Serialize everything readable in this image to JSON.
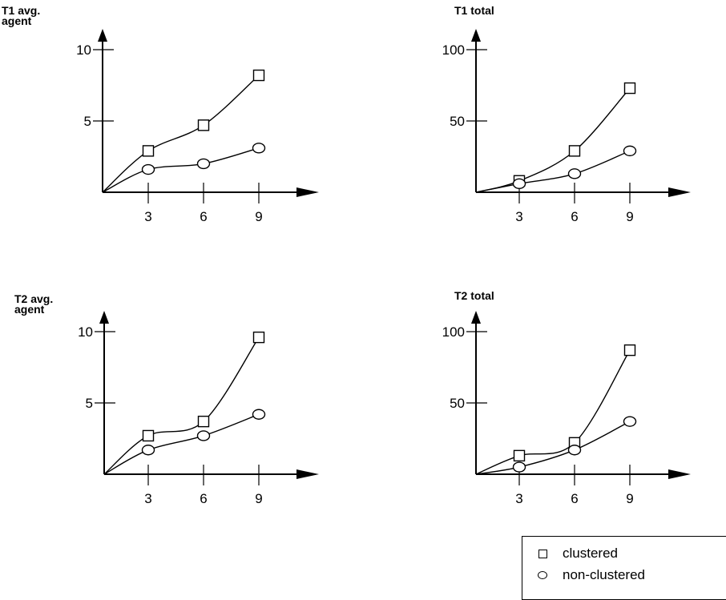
{
  "chart_data": [
    {
      "type": "line",
      "ylabel": "T1  avg.\nagent",
      "x": [
        3,
        6,
        9
      ],
      "xticks": [
        "3",
        "6",
        "9"
      ],
      "yticks": [
        5,
        10
      ],
      "ylim": [
        0,
        10
      ],
      "series": [
        {
          "name": "clustered",
          "marker": "square",
          "values": [
            2.9,
            4.7,
            8.2
          ]
        },
        {
          "name": "non-clustered",
          "marker": "circle",
          "values": [
            1.6,
            2.0,
            3.1
          ]
        }
      ]
    },
    {
      "type": "line",
      "ylabel": "T1 total",
      "x": [
        3,
        6,
        9
      ],
      "xticks": [
        "3",
        "6",
        "9"
      ],
      "yticks": [
        50,
        100
      ],
      "ylim": [
        0,
        100
      ],
      "series": [
        {
          "name": "clustered",
          "marker": "square",
          "values": [
            8,
            29,
            73
          ]
        },
        {
          "name": "non-clustered",
          "marker": "circle",
          "values": [
            6,
            13,
            29
          ]
        }
      ]
    },
    {
      "type": "line",
      "ylabel": "T2  avg.\nagent",
      "x": [
        3,
        6,
        9
      ],
      "xticks": [
        "3",
        "6",
        "9"
      ],
      "yticks": [
        5,
        10
      ],
      "ylim": [
        0,
        10
      ],
      "series": [
        {
          "name": "clustered",
          "marker": "square",
          "values": [
            2.7,
            3.7,
            9.6
          ]
        },
        {
          "name": "non-clustered",
          "marker": "circle",
          "values": [
            1.7,
            2.7,
            4.2
          ]
        }
      ]
    },
    {
      "type": "line",
      "ylabel": "T2 total",
      "x": [
        3,
        6,
        9
      ],
      "xticks": [
        "3",
        "6",
        "9"
      ],
      "yticks": [
        50,
        100
      ],
      "ylim": [
        0,
        100
      ],
      "series": [
        {
          "name": "clustered",
          "marker": "square",
          "values": [
            13,
            22,
            87
          ]
        },
        {
          "name": "non-clustered",
          "marker": "circle",
          "values": [
            5,
            17,
            37
          ]
        }
      ]
    }
  ],
  "legend": {
    "placement": "bottom-right",
    "items": [
      {
        "label": "clustered",
        "marker": "square"
      },
      {
        "label": "non-clustered",
        "marker": "circle"
      }
    ]
  }
}
